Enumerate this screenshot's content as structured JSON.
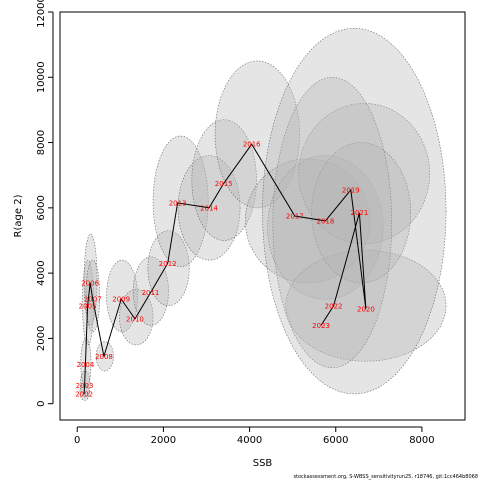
{
  "chart_data": {
    "type": "scatter",
    "xlabel": "SSB",
    "ylabel": "R(age 2)",
    "xlim": [
      -400,
      9000
    ],
    "ylim": [
      -500,
      12000
    ],
    "x_ticks": [
      "0",
      "2000",
      "4000",
      "6000",
      "8000"
    ],
    "x_tick_values": [
      0,
      2000,
      4000,
      6000,
      8000
    ],
    "y_ticks": [
      "0",
      "2000",
      "4000",
      "6000",
      "8000",
      "10000",
      "12000"
    ],
    "y_tick_values": [
      0,
      2000,
      4000,
      6000,
      8000,
      10000,
      12000
    ],
    "grid": false,
    "line_color": "#000000",
    "label_color": "#ff0000",
    "ellipse_fill": "#b4b4b4",
    "ellipse_stroke": "#666666",
    "points": [
      {
        "year": "2002",
        "x": 160,
        "y": 300
      },
      {
        "year": "2003",
        "x": 170,
        "y": 550
      },
      {
        "year": "2004",
        "x": 190,
        "y": 1200
      },
      {
        "year": "2005",
        "x": 240,
        "y": 3000
      },
      {
        "year": "2006",
        "x": 300,
        "y": 3700
      },
      {
        "year": "2007",
        "x": 360,
        "y": 3200
      },
      {
        "year": "2008",
        "x": 620,
        "y": 1450
      },
      {
        "year": "2009",
        "x": 1020,
        "y": 3200
      },
      {
        "year": "2010",
        "x": 1340,
        "y": 2600
      },
      {
        "year": "2011",
        "x": 1700,
        "y": 3400
      },
      {
        "year": "2012",
        "x": 2100,
        "y": 4300
      },
      {
        "year": "2013",
        "x": 2330,
        "y": 6150
      },
      {
        "year": "2014",
        "x": 3060,
        "y": 6000
      },
      {
        "year": "2015",
        "x": 3400,
        "y": 6750
      },
      {
        "year": "2016",
        "x": 4050,
        "y": 7950
      },
      {
        "year": "2017",
        "x": 5050,
        "y": 5750
      },
      {
        "year": "2018",
        "x": 5760,
        "y": 5600
      },
      {
        "year": "2019",
        "x": 6350,
        "y": 6550
      },
      {
        "year": "2020",
        "x": 6700,
        "y": 2900
      },
      {
        "year": "2021",
        "x": 6550,
        "y": 5850
      },
      {
        "year": "2022",
        "x": 5950,
        "y": 3000
      },
      {
        "year": "2023",
        "x": 5660,
        "y": 2400
      }
    ],
    "ellipses": [
      {
        "year": "2002",
        "x": [
          60,
          280
        ],
        "y": [
          100,
          600
        ]
      },
      {
        "year": "2003",
        "x": [
          70,
          300
        ],
        "y": [
          200,
          1000
        ]
      },
      {
        "year": "2004",
        "x": [
          80,
          320
        ],
        "y": [
          500,
          2000
        ]
      },
      {
        "year": "2005",
        "x": [
          120,
          380
        ],
        "y": [
          1800,
          4400
        ]
      },
      {
        "year": "2006",
        "x": [
          160,
          460
        ],
        "y": [
          2400,
          5200
        ]
      },
      {
        "year": "2007",
        "x": [
          200,
          520
        ],
        "y": [
          2200,
          4400
        ]
      },
      {
        "year": "2008",
        "x": [
          440,
          840
        ],
        "y": [
          1000,
          1900
        ]
      },
      {
        "year": "2009",
        "x": [
          680,
          1400
        ],
        "y": [
          2200,
          4400
        ]
      },
      {
        "year": "2010",
        "x": [
          980,
          1760
        ],
        "y": [
          1800,
          3500
        ]
      },
      {
        "year": "2011",
        "x": [
          1300,
          2120
        ],
        "y": [
          2400,
          4500
        ]
      },
      {
        "year": "2012",
        "x": [
          1640,
          2600
        ],
        "y": [
          3000,
          5300
        ]
      },
      {
        "year": "2013",
        "x": [
          1760,
          3040
        ],
        "y": [
          4200,
          8200
        ]
      },
      {
        "year": "2014",
        "x": [
          2340,
          3780
        ],
        "y": [
          4400,
          7600
        ]
      },
      {
        "year": "2015",
        "x": [
          2660,
          4160
        ],
        "y": [
          5000,
          8700
        ]
      },
      {
        "year": "2016",
        "x": [
          3200,
          5160
        ],
        "y": [
          6000,
          10500
        ]
      },
      {
        "year": "2017",
        "x": [
          3900,
          6800
        ],
        "y": [
          3700,
          7500
        ]
      },
      {
        "year": "2018",
        "x": [
          4420,
          7100
        ],
        "y": [
          3200,
          7600
        ]
      },
      {
        "year": "2019",
        "x": [
          5140,
          8180
        ],
        "y": [
          4900,
          9200
        ]
      },
      {
        "year": "2020",
        "x": [
          4840,
          8560
        ],
        "y": [
          1300,
          4700
        ]
      },
      {
        "year": "2021",
        "x": [
          5440,
          7740
        ],
        "y": [
          3700,
          8000
        ]
      },
      {
        "year": "2022",
        "x": [
          4540,
          7300
        ],
        "y": [
          1100,
          10000
        ]
      },
      {
        "year": "2023",
        "x": [
          4300,
          8560
        ],
        "y": [
          300,
          11500
        ]
      }
    ]
  },
  "footer": {
    "credit": "stockassessment.org, S-WBSS_sensitivityrun25, r18746, git:1cc464b8068"
  }
}
